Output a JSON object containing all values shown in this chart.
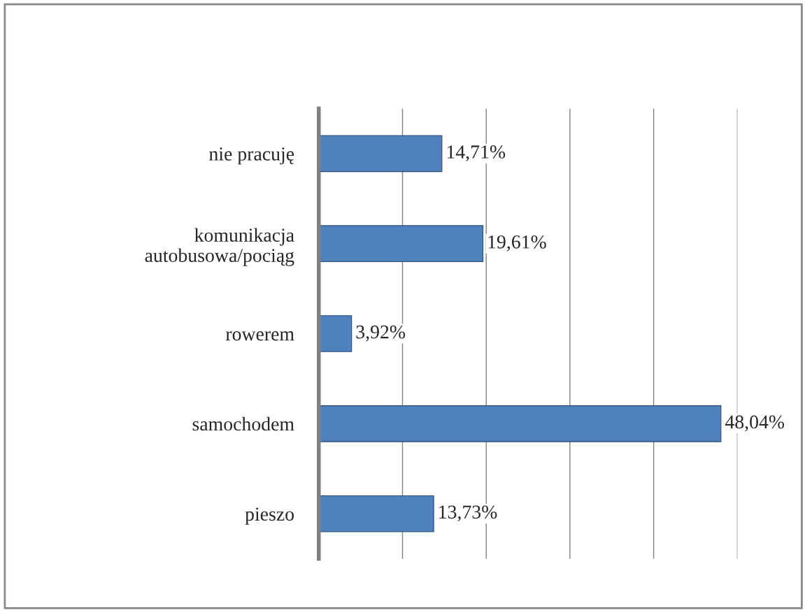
{
  "chart_data": {
    "type": "bar",
    "orientation": "horizontal",
    "categories": [
      "nie pracuję",
      "komunikacja\nautobusowa/pociąg",
      "rowerem",
      "samochodem",
      "pieszo"
    ],
    "values": [
      14.71,
      19.61,
      3.92,
      48.04,
      13.73
    ],
    "value_labels": [
      "14,71%",
      "19,61%",
      "3,92%",
      "48,04%",
      "13,73%"
    ],
    "color": "#4f81bd",
    "xlim": [
      0,
      50
    ],
    "xticks": [
      {
        "value": 0,
        "label": null
      },
      {
        "value": 10,
        "label": null
      },
      {
        "value": 20,
        "label": null
      },
      {
        "value": 30,
        "label": null
      },
      {
        "value": 40,
        "label": null
      },
      {
        "value": 50,
        "label": null
      }
    ],
    "grid": "x",
    "tick_labels": "y"
  }
}
